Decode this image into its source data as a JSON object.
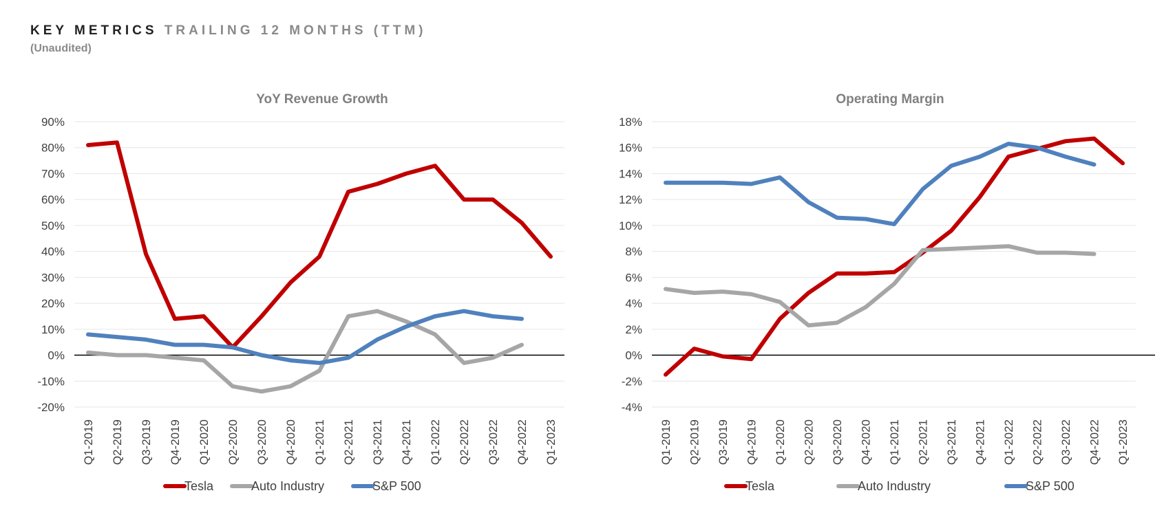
{
  "header": {
    "title_main": "KEY METRICS",
    "title_sub": "TRAILING 12 MONTHS (TTM)",
    "subtitle": "(Unaudited)"
  },
  "colors": {
    "tesla": "#c00000",
    "auto": "#a6a6a6",
    "sp500": "#4f81bd",
    "grid": "#e6e6e6",
    "zero": "#000000"
  },
  "chart_data": [
    {
      "type": "line",
      "title": "YoY Revenue Growth",
      "ylim": [
        -20,
        90
      ],
      "ytick_step": 10,
      "y_format": "percent",
      "categories": [
        "Q1-2019",
        "Q2-2019",
        "Q3-2019",
        "Q4-2019",
        "Q1-2020",
        "Q2-2020",
        "Q3-2020",
        "Q4-2020",
        "Q1-2021",
        "Q2-2021",
        "Q3-2021",
        "Q4-2021",
        "Q1-2022",
        "Q2-2022",
        "Q3-2022",
        "Q4-2022",
        "Q1-2023"
      ],
      "series": [
        {
          "name": "Tesla",
          "color_key": "tesla",
          "values": [
            81,
            82,
            39,
            14,
            15,
            3,
            15,
            28,
            38,
            63,
            66,
            70,
            73,
            60,
            60,
            51,
            38
          ]
        },
        {
          "name": "Auto Industry",
          "color_key": "auto",
          "values": [
            1,
            0,
            0,
            -1,
            -2,
            -12,
            -14,
            -12,
            -6,
            15,
            17,
            13,
            8,
            -3,
            -1,
            4,
            null
          ]
        },
        {
          "name": "S&P 500",
          "color_key": "sp500",
          "values": [
            8,
            7,
            6,
            4,
            4,
            3,
            0,
            -2,
            -3,
            -1,
            6,
            11,
            15,
            17,
            15,
            14,
            null
          ]
        }
      ],
      "legend": "bottom",
      "grid": true
    },
    {
      "type": "line",
      "title": "Operating Margin",
      "ylim": [
        -4,
        18
      ],
      "ytick_step": 2,
      "y_format": "percent",
      "categories": [
        "Q1-2019",
        "Q2-2019",
        "Q3-2019",
        "Q4-2019",
        "Q1-2020",
        "Q2-2020",
        "Q3-2020",
        "Q4-2020",
        "Q1-2021",
        "Q2-2021",
        "Q3-2021",
        "Q4-2021",
        "Q1-2022",
        "Q2-2022",
        "Q3-2022",
        "Q4-2022",
        "Q1-2023"
      ],
      "series": [
        {
          "name": "Tesla",
          "color_key": "tesla",
          "values": [
            -1.5,
            0.5,
            -0.1,
            -0.3,
            2.8,
            4.8,
            6.3,
            6.3,
            6.4,
            7.9,
            9.6,
            12.2,
            15.3,
            15.9,
            16.5,
            16.7,
            14.8
          ]
        },
        {
          "name": "Auto Industry",
          "color_key": "auto",
          "values": [
            5.1,
            4.8,
            4.9,
            4.7,
            4.1,
            2.3,
            2.5,
            3.7,
            5.5,
            8.1,
            8.2,
            8.3,
            8.4,
            7.9,
            7.9,
            7.8,
            null
          ]
        },
        {
          "name": "S&P 500",
          "color_key": "sp500",
          "values": [
            13.3,
            13.3,
            13.3,
            13.2,
            13.7,
            11.8,
            10.6,
            10.5,
            10.1,
            12.8,
            14.6,
            15.3,
            16.3,
            16.0,
            15.3,
            14.7,
            null
          ]
        }
      ],
      "legend": "bottom",
      "grid": true
    }
  ]
}
